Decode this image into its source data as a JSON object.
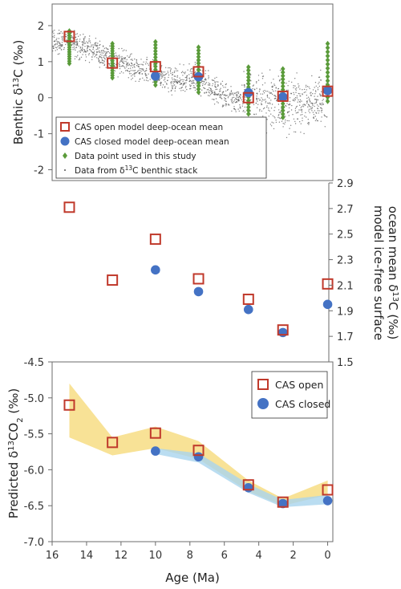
{
  "chart_data": [
    {
      "type": "scatter",
      "ylabel": "Benthic δ13C (‰)",
      "ylabel_parts": [
        "Benthic δ",
        "13",
        "C (‰)"
      ],
      "ylim": [
        -2.3,
        2.6
      ],
      "xlim": [
        16,
        -0.3
      ],
      "yticks": [
        -2,
        -1,
        0,
        1,
        2
      ],
      "series": [
        {
          "name": "CAS open model deep-ocean mean",
          "color": "#c0392b",
          "marker": "open-square",
          "x": [
            15.0,
            12.5,
            10.0,
            7.5,
            4.6,
            2.6,
            0.0
          ],
          "y": [
            1.7,
            0.96,
            0.86,
            0.72,
            0.0,
            0.04,
            0.18
          ]
        },
        {
          "name": "CAS closed model deep-ocean mean",
          "color": "#4472c4",
          "marker": "filled-circle",
          "x": [
            10.0,
            7.5,
            4.6,
            2.6,
            0.0
          ],
          "y": [
            0.6,
            0.58,
            0.14,
            0.02,
            0.2
          ]
        },
        {
          "name": "Data point used in this study",
          "color": "#5a9b3a",
          "marker": "diamond",
          "x": [
            15.0,
            12.5,
            10.0,
            7.5,
            4.6,
            2.6,
            0.0
          ],
          "ymin": [
            0.95,
            0.55,
            0.35,
            0.15,
            -0.45,
            -0.55,
            -0.1
          ],
          "ymax": [
            1.85,
            1.5,
            1.55,
            1.4,
            0.85,
            0.8,
            1.5
          ]
        },
        {
          "name": "Data from δ13C benthic stack",
          "color": "#555555",
          "marker": "dot",
          "legend_parts": [
            "Data from δ",
            "13",
            "C benthic stack"
          ],
          "trend_x": [
            16,
            14,
            12.5,
            11,
            10,
            9,
            7.5,
            6,
            5,
            4,
            3,
            2,
            1,
            0
          ],
          "trend_y": [
            1.6,
            1.4,
            1.05,
            0.8,
            0.65,
            0.45,
            0.55,
            0.0,
            -0.05,
            -0.05,
            -0.1,
            -0.15,
            -0.15,
            -0.15
          ]
        }
      ],
      "legend": "bottom-left"
    },
    {
      "type": "scatter",
      "ylabel_lines": [
        "model ice-free surface",
        "ocean mean δ13C (‰)"
      ],
      "ylabel_line2_parts": [
        "ocean mean δ",
        "13",
        "C (‰)"
      ],
      "ylim": [
        1.5,
        2.9
      ],
      "yticks": [
        1.5,
        1.7,
        1.9,
        2.1,
        2.3,
        2.5,
        2.7,
        2.9
      ],
      "axis_side": "right",
      "series": [
        {
          "name": "CAS open",
          "color": "#c0392b",
          "marker": "open-square",
          "x": [
            15.0,
            12.5,
            10.0,
            7.5,
            4.6,
            2.6,
            0.0
          ],
          "y": [
            2.71,
            2.14,
            2.46,
            2.15,
            1.99,
            1.75,
            2.11
          ]
        },
        {
          "name": "CAS closed",
          "color": "#4472c4",
          "marker": "filled-circle",
          "x": [
            10.0,
            7.5,
            4.6,
            2.6,
            0.0
          ],
          "y": [
            2.22,
            2.05,
            1.91,
            1.73,
            1.95
          ]
        }
      ]
    },
    {
      "type": "scatter",
      "ylabel": "Predicted δ13CO2 (‰)",
      "ylabel_parts": [
        "Predicted δ",
        "13",
        "CO",
        "2",
        " (‰)"
      ],
      "xlabel": "Age (Ma)",
      "ylim": [
        -7.0,
        -4.5
      ],
      "xlim": [
        16,
        -0.3
      ],
      "xticks": [
        16,
        14,
        12,
        10,
        8,
        6,
        4,
        2,
        0
      ],
      "yticks": [
        -7.0,
        -6.5,
        -6.0,
        -5.5,
        -5.0,
        -4.5
      ],
      "legend": "top-right",
      "series": [
        {
          "name": "CAS open",
          "color": "#c0392b",
          "marker": "open-square",
          "x": [
            15.0,
            12.5,
            10.0,
            7.5,
            4.6,
            2.6,
            0.0
          ],
          "y": [
            -5.1,
            -5.62,
            -5.49,
            -5.73,
            -6.21,
            -6.45,
            -6.28
          ],
          "band_color": "#f7dd84",
          "band_upper": [
            -4.8,
            -5.55,
            -5.4,
            -5.6,
            -6.15,
            -6.4,
            -6.15
          ],
          "band_lower": [
            -5.55,
            -5.8,
            -5.7,
            -5.85,
            -6.3,
            -6.5,
            -6.35
          ]
        },
        {
          "name": "CAS closed",
          "color": "#4472c4",
          "marker": "filled-circle",
          "x": [
            10.0,
            7.5,
            4.6,
            2.6,
            0.0
          ],
          "y": [
            -5.74,
            -5.82,
            -6.25,
            -6.47,
            -6.43
          ],
          "band_color": "#a9d4ee",
          "band_upper": [
            -5.7,
            -5.77,
            -6.2,
            -6.42,
            -6.35
          ],
          "band_lower": [
            -5.78,
            -5.9,
            -6.32,
            -6.52,
            -6.48
          ]
        }
      ]
    }
  ]
}
